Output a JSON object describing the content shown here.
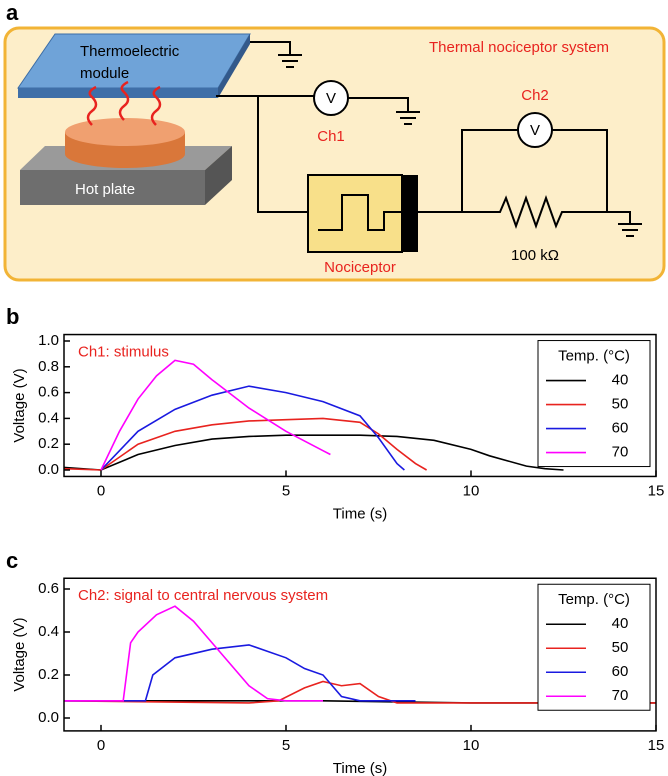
{
  "diagram": {
    "panel_label": "a",
    "title": "Thermal nociceptor system",
    "module_lines": [
      "Thermoelectric",
      "module"
    ],
    "hot_plate": "Hot plate",
    "voltmeter": "V",
    "ch1": "Ch1",
    "ch2": "Ch2",
    "nociceptor": "Nociceptor",
    "resistor": "100 kΩ"
  },
  "chart_data": [
    {
      "type": "line",
      "panel_label": "b",
      "annotation": "Ch1: stimulus",
      "xlabel": "Time (s)",
      "ylabel": "Voltage (V)",
      "xlim": [
        -1,
        15
      ],
      "xticks": [
        0,
        5,
        10,
        15
      ],
      "ylim": [
        -0.05,
        1.05
      ],
      "yticks": [
        {
          "value": 0,
          "label": "0.0"
        },
        0.2,
        0.4,
        0.6,
        0.8,
        {
          "value": 1,
          "label": "1.0"
        }
      ],
      "legend_title": "Temp. (°C)",
      "legend": "upper right",
      "series": [
        {
          "name": "40",
          "color": "#000000",
          "x": [
            -1,
            0,
            1,
            2,
            3,
            4,
            5,
            6,
            7,
            8,
            9,
            10,
            10.5,
            11,
            11.5,
            12,
            12.5
          ],
          "values": [
            0.02,
            0.0,
            0.12,
            0.19,
            0.24,
            0.26,
            0.27,
            0.27,
            0.27,
            0.26,
            0.23,
            0.16,
            0.11,
            0.07,
            0.03,
            0.01,
            0.0
          ]
        },
        {
          "name": "50",
          "color": "#e8231f",
          "x": [
            -1,
            0,
            1,
            2,
            3,
            4,
            5,
            6,
            7,
            7.5,
            8,
            8.5,
            8.8
          ],
          "values": [
            0.01,
            0.0,
            0.2,
            0.3,
            0.35,
            0.38,
            0.39,
            0.4,
            0.37,
            0.28,
            0.16,
            0.05,
            0.0
          ]
        },
        {
          "name": "60",
          "color": "#1a1ae0",
          "x": [
            0,
            0.5,
            1,
            2,
            3,
            4,
            5,
            6,
            7,
            7.5,
            8,
            8.2
          ],
          "values": [
            0.0,
            0.15,
            0.3,
            0.47,
            0.58,
            0.65,
            0.6,
            0.53,
            0.42,
            0.25,
            0.05,
            0.0
          ]
        },
        {
          "name": "70",
          "color": "#ff00ff",
          "x": [
            0,
            0.5,
            1,
            1.5,
            2,
            2.5,
            3,
            4,
            5,
            6,
            6.2
          ],
          "values": [
            0.0,
            0.3,
            0.55,
            0.73,
            0.85,
            0.82,
            0.7,
            0.48,
            0.3,
            0.15,
            0.12
          ]
        }
      ]
    },
    {
      "type": "line",
      "panel_label": "c",
      "annotation": "Ch2: signal to central nervous system",
      "xlabel": "Time (s)",
      "ylabel": "Voltage (V)",
      "xlim": [
        -1,
        15
      ],
      "xticks": [
        0,
        5,
        10,
        15
      ],
      "ylim": [
        -0.06,
        0.65
      ],
      "yticks": [
        {
          "value": 0,
          "label": "0.0"
        },
        0.2,
        0.4,
        0.6
      ],
      "legend_title": "Temp. (°C)",
      "legend": "upper right",
      "series": [
        {
          "name": "40",
          "color": "#000000",
          "x": [
            -1,
            3,
            6,
            10,
            15
          ],
          "values": [
            0.08,
            0.08,
            0.08,
            0.07,
            0.07
          ]
        },
        {
          "name": "50",
          "color": "#e8231f",
          "x": [
            -1,
            4,
            4.8,
            5.5,
            6,
            6.5,
            7,
            7.5,
            8,
            10,
            15
          ],
          "values": [
            0.08,
            0.07,
            0.08,
            0.14,
            0.17,
            0.15,
            0.16,
            0.1,
            0.07,
            0.07,
            0.07
          ]
        },
        {
          "name": "60",
          "color": "#1a1ae0",
          "x": [
            -1,
            1.2,
            1.4,
            2,
            3,
            4,
            5,
            5.5,
            6,
            6.5,
            7,
            8.5
          ],
          "values": [
            0.08,
            0.08,
            0.2,
            0.28,
            0.32,
            0.34,
            0.28,
            0.23,
            0.2,
            0.1,
            0.08,
            0.08
          ]
        },
        {
          "name": "70",
          "color": "#ff00ff",
          "x": [
            -1,
            0.6,
            0.8,
            1,
            1.5,
            2,
            2.5,
            3,
            3.5,
            4,
            4.5,
            5,
            6
          ],
          "values": [
            0.08,
            0.08,
            0.35,
            0.4,
            0.48,
            0.52,
            0.45,
            0.35,
            0.25,
            0.15,
            0.09,
            0.08,
            0.08
          ]
        }
      ]
    }
  ]
}
